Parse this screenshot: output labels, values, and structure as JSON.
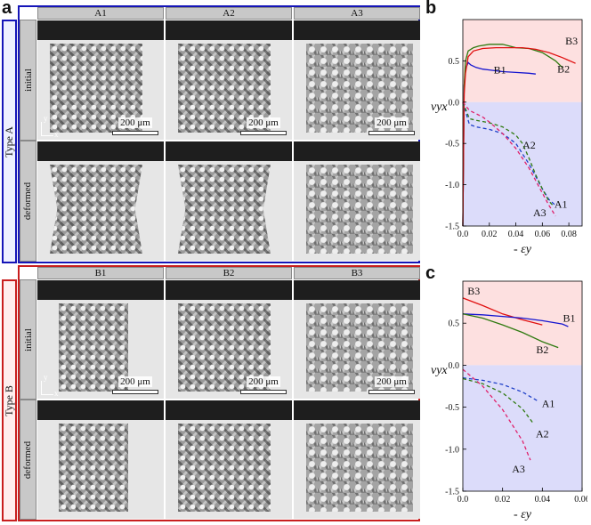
{
  "panels": {
    "a": "a",
    "b": "b",
    "c": "c"
  },
  "groups": [
    {
      "label": "Type A",
      "color": "#1515b8",
      "columns": [
        "A1",
        "A2",
        "A3"
      ],
      "rows": [
        "initial",
        "deformed"
      ],
      "scale_text": "200 μm",
      "axis_x": "x",
      "axis_y": "y"
    },
    {
      "label": "Type B",
      "color": "#c81e1e",
      "columns": [
        "B1",
        "B2",
        "B3"
      ],
      "rows": [
        "initial",
        "deformed"
      ],
      "scale_text": "200 μm",
      "axis_x": "x",
      "axis_y": "y"
    }
  ],
  "chart_data": [
    {
      "panel": "b",
      "type": "line",
      "ylabel": "νyx",
      "xlabel": "- εy",
      "xlim": [
        0,
        0.09
      ],
      "ylim": [
        -1.5,
        1.0
      ],
      "xticks": [
        "0.0",
        "0.02",
        "0.04",
        "0.06",
        "0.08"
      ],
      "yticks": [
        "0.5",
        "0.0",
        "-0.5",
        "-1.0",
        "-1.5"
      ],
      "xtick_values": [
        0,
        0.02,
        0.04,
        0.06,
        0.08
      ],
      "ytick_values": [
        0.5,
        0.0,
        -0.5,
        -1.0,
        -1.5
      ],
      "pos_region_color": "#fde0e0",
      "neg_region_color": "#dcdcfa",
      "series": [
        {
          "name": "B1",
          "color": "#1515d0",
          "dash": false,
          "label_xy": [
            0.028,
            0.35
          ],
          "x": [
            0,
            0.001,
            0.002,
            0.004,
            0.006,
            0.01,
            0.015,
            0.02,
            0.03,
            0.04,
            0.05,
            0.055
          ],
          "y": [
            -1.5,
            0.2,
            0.4,
            0.48,
            0.45,
            0.42,
            0.4,
            0.39,
            0.37,
            0.36,
            0.35,
            0.34
          ]
        },
        {
          "name": "B2",
          "color": "#2f7a10",
          "dash": false,
          "label_xy": [
            0.076,
            0.36
          ],
          "x": [
            0,
            0.001,
            0.002,
            0.004,
            0.008,
            0.012,
            0.02,
            0.03,
            0.04,
            0.05,
            0.06,
            0.07,
            0.075
          ],
          "y": [
            -1.5,
            0.2,
            0.5,
            0.62,
            0.66,
            0.68,
            0.7,
            0.7,
            0.66,
            0.65,
            0.6,
            0.5,
            0.42
          ]
        },
        {
          "name": "B3",
          "color": "#e01010",
          "dash": false,
          "label_xy": [
            0.082,
            0.7
          ],
          "x": [
            0,
            0.001,
            0.002,
            0.004,
            0.008,
            0.015,
            0.025,
            0.035,
            0.045,
            0.055,
            0.065,
            0.075,
            0.085
          ],
          "y": [
            -1.5,
            0.1,
            0.35,
            0.55,
            0.62,
            0.65,
            0.66,
            0.66,
            0.66,
            0.64,
            0.6,
            0.54,
            0.47
          ]
        },
        {
          "name": "A1",
          "color": "#1e3fc8",
          "dash": true,
          "label_xy": [
            0.074,
            -1.28
          ],
          "x": [
            0,
            0.005,
            0.01,
            0.02,
            0.03,
            0.04,
            0.05,
            0.06,
            0.065,
            0.07
          ],
          "y": [
            0.0,
            -0.27,
            -0.3,
            -0.33,
            -0.38,
            -0.5,
            -0.75,
            -1.05,
            -1.18,
            -1.25
          ]
        },
        {
          "name": "A2",
          "color": "#2f7a10",
          "dash": true,
          "label_xy": [
            0.05,
            -0.56
          ],
          "x": [
            0,
            0.005,
            0.01,
            0.02,
            0.03,
            0.04,
            0.045,
            0.05,
            0.055,
            0.06,
            0.065,
            0.068
          ],
          "y": [
            0.0,
            -0.2,
            -0.22,
            -0.25,
            -0.3,
            -0.4,
            -0.5,
            -0.68,
            -0.88,
            -1.05,
            -1.2,
            -1.25
          ]
        },
        {
          "name": "A3",
          "color": "#e0206a",
          "dash": true,
          "label_xy": [
            0.058,
            -1.38
          ],
          "x": [
            0,
            0.005,
            0.01,
            0.015,
            0.02,
            0.03,
            0.04,
            0.05,
            0.055,
            0.06,
            0.065,
            0.07
          ],
          "y": [
            0.0,
            -0.1,
            -0.14,
            -0.18,
            -0.24,
            -0.38,
            -0.56,
            -0.8,
            -0.95,
            -1.1,
            -1.25,
            -1.38
          ]
        }
      ]
    },
    {
      "panel": "c",
      "type": "line",
      "ylabel": "νyx",
      "xlabel": "- εy",
      "xlim": [
        0,
        0.06
      ],
      "ylim": [
        -1.5,
        1.0
      ],
      "xticks": [
        "0.0",
        "0.02",
        "0.04",
        "0.06"
      ],
      "yticks": [
        "0.5",
        "0.0",
        "-0.5",
        "-1.0",
        "-1.5"
      ],
      "xtick_values": [
        0,
        0.02,
        0.04,
        0.06
      ],
      "ytick_values": [
        0.5,
        0.0,
        -0.5,
        -1.0,
        -1.5
      ],
      "pos_region_color": "#fde0e0",
      "neg_region_color": "#dcdcfa",
      "series": [
        {
          "name": "B3",
          "color": "#e01010",
          "dash": false,
          "label_xy": [
            0.0055,
            0.84
          ],
          "x": [
            0,
            0.01,
            0.02,
            0.03,
            0.04
          ],
          "y": [
            0.8,
            0.71,
            0.61,
            0.54,
            0.48
          ]
        },
        {
          "name": "B1",
          "color": "#1515d0",
          "dash": false,
          "label_xy": [
            0.0535,
            0.52
          ],
          "x": [
            0,
            0.01,
            0.02,
            0.03,
            0.04,
            0.05,
            0.053
          ],
          "y": [
            0.61,
            0.6,
            0.58,
            0.56,
            0.53,
            0.49,
            0.46
          ]
        },
        {
          "name": "B2",
          "color": "#2f7a10",
          "dash": false,
          "label_xy": [
            0.04,
            0.14
          ],
          "x": [
            0,
            0.01,
            0.02,
            0.03,
            0.04,
            0.048
          ],
          "y": [
            0.61,
            0.56,
            0.48,
            0.39,
            0.28,
            0.21
          ]
        },
        {
          "name": "A1",
          "color": "#1e3fc8",
          "dash": true,
          "label_xy": [
            0.043,
            -0.5
          ],
          "x": [
            0,
            0.01,
            0.02,
            0.03,
            0.038
          ],
          "y": [
            -0.15,
            -0.18,
            -0.23,
            -0.32,
            -0.43
          ]
        },
        {
          "name": "A2",
          "color": "#2f7a10",
          "dash": true,
          "label_xy": [
            0.04,
            -0.86
          ],
          "x": [
            0,
            0.01,
            0.02,
            0.03,
            0.035
          ],
          "y": [
            -0.16,
            -0.22,
            -0.33,
            -0.52,
            -0.68
          ]
        },
        {
          "name": "A3",
          "color": "#e0206a",
          "dash": true,
          "label_xy": [
            0.028,
            -1.28
          ],
          "x": [
            0,
            0.01,
            0.02,
            0.03,
            0.034
          ],
          "y": [
            -0.05,
            -0.25,
            -0.53,
            -0.9,
            -1.13
          ]
        }
      ]
    }
  ]
}
